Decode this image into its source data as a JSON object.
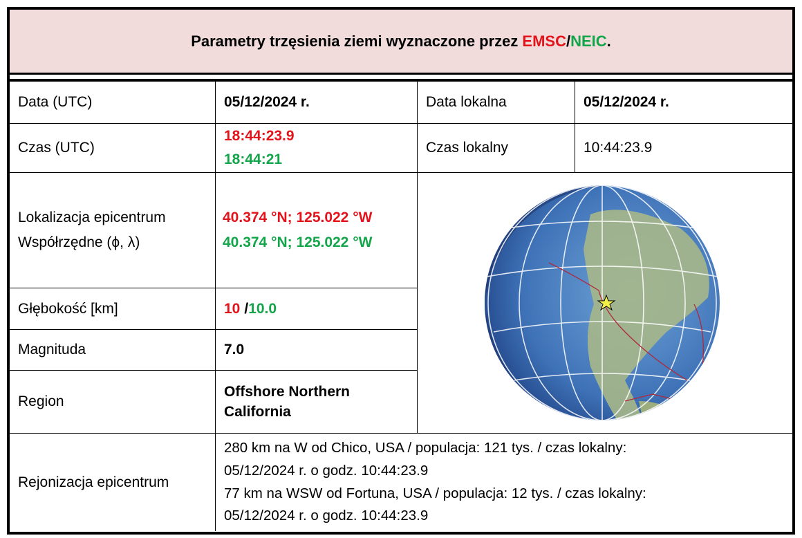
{
  "header": {
    "title": "Parametry trzęsienia ziemi wyznaczone przez",
    "emsc": "EMSC",
    "separator": "/",
    "neic": "NEIC",
    "end": "."
  },
  "table": {
    "rows": [
      {
        "label": "Data (UTC)",
        "value": "05/12/2024 r.",
        "label2": "Data lokalna",
        "value2": "05/12/2024 r."
      },
      {
        "label": "Czas (UTC)",
        "emsc": "18:44:23.9",
        "neic": "18:44:21",
        "label2": "Czas lokalny",
        "value2": "10:44:23.9"
      },
      {
        "label": [
          "Lokalizacja epicentrum",
          "Współrzędne (ϕ, λ)"
        ],
        "emsc": "40.374 °N; 125.022 °W",
        "neic": "40.374 °N; 125.022 °W"
      },
      {
        "label": "Głębokość [km]",
        "emsc": "10",
        "separator": "/",
        "neic": "10.0"
      },
      {
        "label": "Magnituda",
        "value": "7.0"
      },
      {
        "label": "Region",
        "value": "Offshore Northern California"
      },
      {
        "label": "Rejonizacja epicentrum",
        "lines": [
          "280 km na W od Chico, USA / populacja: 121 tys. / czas lokalny:",
          "05/12/2024 r. o godz. 10:44:23.9",
          "77 km na WSW od Fortuna, USA / populacja: 12 tys. / czas lokalny:",
          "05/12/2024 r. o godz. 10:44:23.9"
        ]
      }
    ]
  }
}
